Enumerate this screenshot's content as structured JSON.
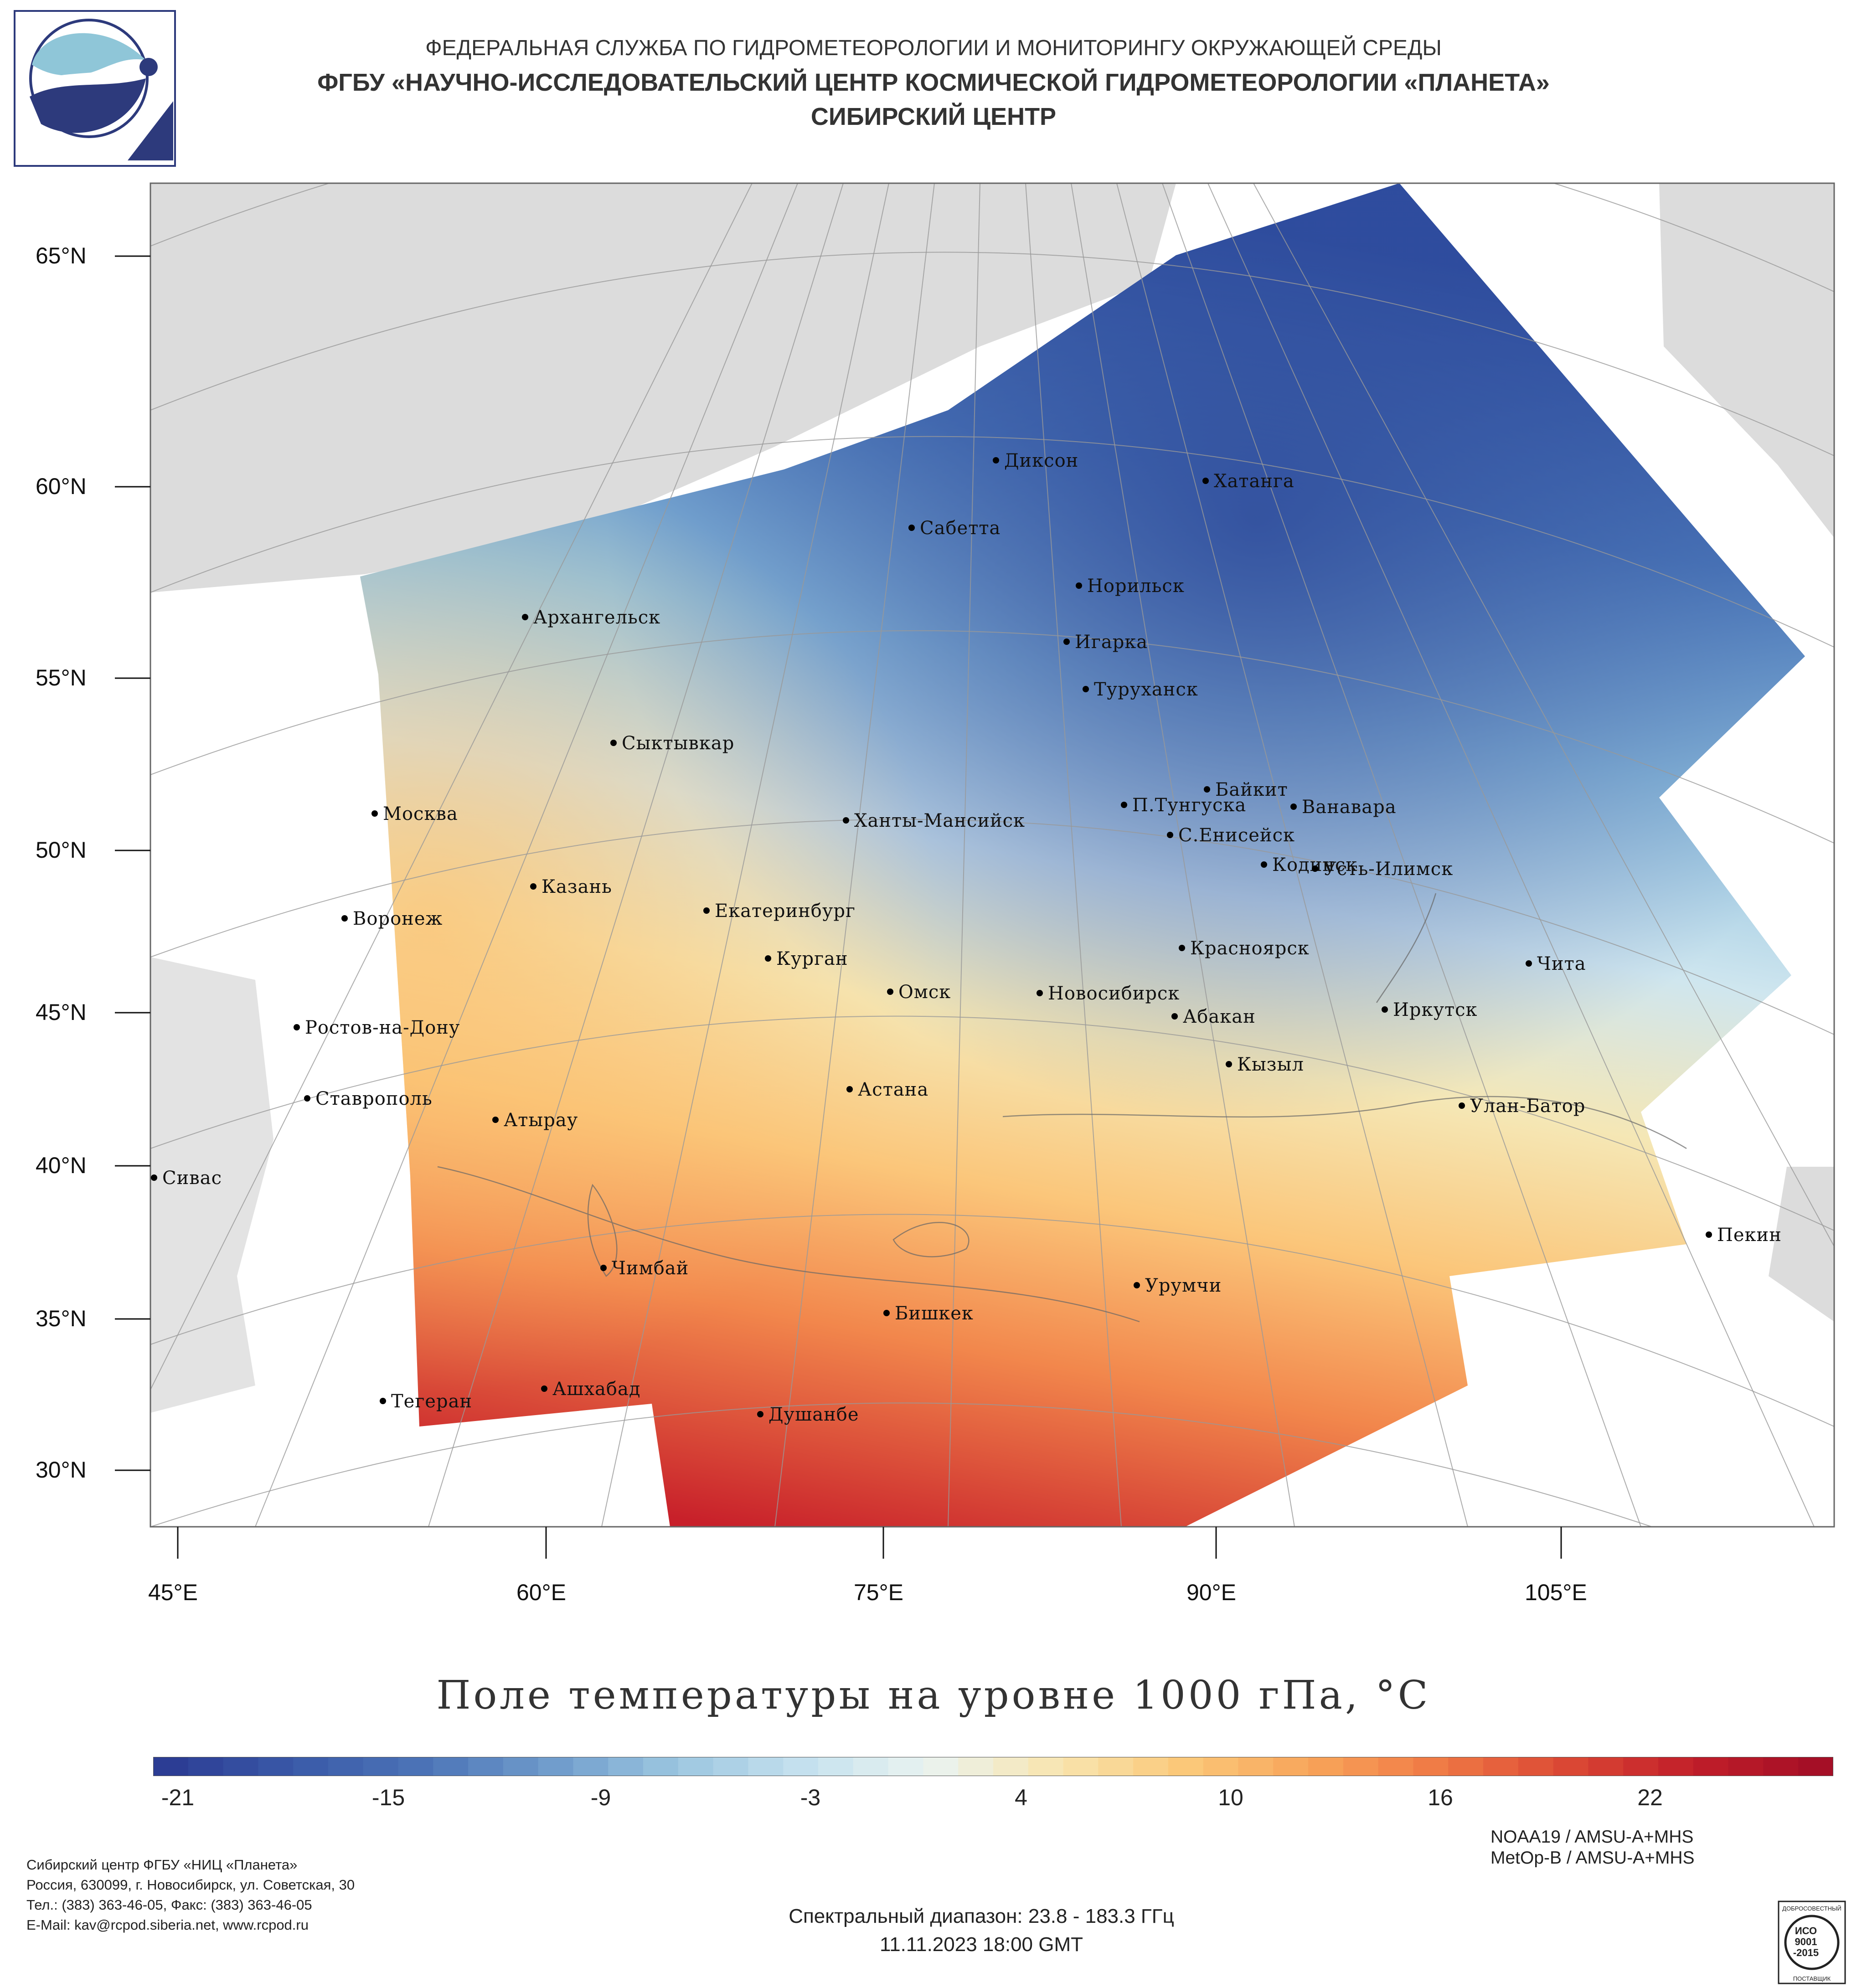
{
  "header": {
    "agency": "ФЕДЕРАЛЬНАЯ СЛУЖБА ПО ГИДРОМЕТЕОРОЛОГИИ И МОНИТОРИНГУ ОКРУЖАЮЩЕЙ СРЕДЫ",
    "center": "ФГБУ «НАУЧНО-ИССЛЕДОВАТЕЛЬСКИЙ ЦЕНТР КОСМИЧЕСКОЙ ГИДРОМЕТЕОРОЛОГИИ «ПЛАНЕТА»",
    "branch": "СИБИРСКИЙ ЦЕНТР",
    "logo_icon": "planeta-logo-icon"
  },
  "map": {
    "lat_labels": [
      "65°N",
      "60°N",
      "55°N",
      "50°N",
      "45°N",
      "40°N",
      "35°N",
      "30°N"
    ],
    "lon_labels": [
      "45°E",
      "60°E",
      "75°E",
      "90°E",
      "105°E"
    ],
    "cities": [
      {
        "name": "Диксон"
      },
      {
        "name": "Хатанга"
      },
      {
        "name": "Сабетта"
      },
      {
        "name": "Норильск"
      },
      {
        "name": "Игарка"
      },
      {
        "name": "Туруханск"
      },
      {
        "name": "Архангельск"
      },
      {
        "name": "Сыктывкар"
      },
      {
        "name": "Байкит"
      },
      {
        "name": "П.Тунгуска"
      },
      {
        "name": "Ванавара"
      },
      {
        "name": "С.Енисейск"
      },
      {
        "name": "Кодинск"
      },
      {
        "name": "Усть-Илимск"
      },
      {
        "name": "Москва"
      },
      {
        "name": "Ханты-Мансийск"
      },
      {
        "name": "Казань"
      },
      {
        "name": "Екатеринбург"
      },
      {
        "name": "Воронеж"
      },
      {
        "name": "Курган"
      },
      {
        "name": "Красноярск"
      },
      {
        "name": "Чита"
      },
      {
        "name": "Омск"
      },
      {
        "name": "Новосибирск"
      },
      {
        "name": "Иркутск"
      },
      {
        "name": "Абакан"
      },
      {
        "name": "Ростов-на-Дону"
      },
      {
        "name": "Кызыл"
      },
      {
        "name": "Астана"
      },
      {
        "name": "Ставрополь"
      },
      {
        "name": "Улан-Батор"
      },
      {
        "name": "Атырау"
      },
      {
        "name": "Сивас"
      },
      {
        "name": "Пекин"
      },
      {
        "name": "Чимбай"
      },
      {
        "name": "Урумчи"
      },
      {
        "name": "Бишкек"
      },
      {
        "name": "Ашхабад"
      },
      {
        "name": "Тегеран"
      },
      {
        "name": "Душанбе"
      }
    ]
  },
  "title": "Поле температуры на уровне 1000 гПа, °C",
  "colorbar": {
    "ticks": [
      "-21",
      "-15",
      "-9",
      "-3",
      "4",
      "10",
      "16",
      "22"
    ],
    "colors": [
      "#2c3d94",
      "#3a5aa8",
      "#4c74b7",
      "#6f9bcb",
      "#9cc6e0",
      "#c5e1ee",
      "#eaf3f0",
      "#f8e5b0",
      "#fbc97a",
      "#f8a55a",
      "#f07a45",
      "#dc4a35",
      "#c21f2a",
      "#a50f26"
    ]
  },
  "footer": {
    "org_lines": [
      "Сибирский центр ФГБУ «НИЦ «Планета»",
      "Россия, 630099, г. Новосибирск, ул. Советская, 30",
      "Тел.: (383) 363-46-05, Факс: (383) 363-46-05",
      "E-Mail: kav@rcpod.siberia.net, www.rcpod.ru"
    ],
    "satellites": [
      "NOAA19 / AMSU-A+MHS",
      "MetOp-B / AMSU-A+MHS"
    ],
    "spectral": "Спектральный диапазон: 23.8 - 183.3 ГГц",
    "datetime": "11.11.2023 18:00 GMT",
    "iso_icon": "iso-certificate-icon",
    "iso_lines": [
      "ДОБРОСОВЕСТНЫЙ",
      "ИСО",
      "9001",
      "-2015",
      "ПОСТАВЩИК"
    ]
  }
}
